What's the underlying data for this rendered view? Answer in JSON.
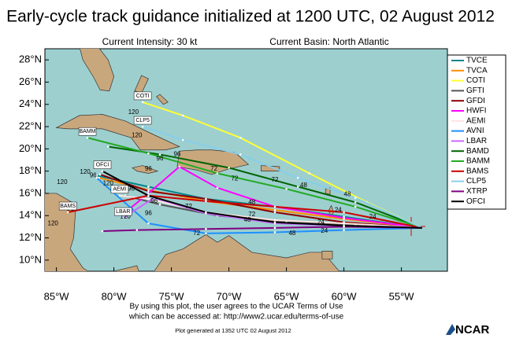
{
  "chart_data": {
    "type": "track",
    "title": "Early-cycle track guidance initialized at 1200 UTC, 02 August 2012",
    "subtitle_left": "Current Intensity: 30 kt",
    "subtitle_right": "Current Basin: North Atlantic",
    "xlim": [
      -86,
      -51
    ],
    "ylim": [
      9,
      29
    ],
    "xticks": [
      {
        "value": -85,
        "label": "85°W"
      },
      {
        "value": -80,
        "label": "80°W"
      },
      {
        "value": -75,
        "label": "75°W"
      },
      {
        "value": -70,
        "label": "70°W"
      },
      {
        "value": -65,
        "label": "65°W"
      },
      {
        "value": -60,
        "label": "60°W"
      },
      {
        "value": -55,
        "label": "55°W"
      }
    ],
    "yticks": [
      {
        "value": 10,
        "label": "10°N"
      },
      {
        "value": 12,
        "label": "12°N"
      },
      {
        "value": 14,
        "label": "14°N"
      },
      {
        "value": 16,
        "label": "16°N"
      },
      {
        "value": 18,
        "label": "18°N"
      },
      {
        "value": 20,
        "label": "20°N"
      },
      {
        "value": 22,
        "label": "22°N"
      },
      {
        "value": 24,
        "label": "24°N"
      },
      {
        "value": 26,
        "label": "26°N"
      },
      {
        "value": 28,
        "label": "28°N"
      }
    ],
    "series": [
      {
        "name": "TVCE",
        "color": "#00868b",
        "lon": [
          -53.2,
          -60,
          -66,
          -72,
          -77,
          -81.5
        ],
        "lat": [
          12.9,
          13.9,
          14.8,
          15.5,
          16.6,
          17.6
        ]
      },
      {
        "name": "TVCA",
        "color": "#ff8c00",
        "lon": [
          -53.2,
          -60,
          -66,
          -72,
          -77,
          -81.3
        ],
        "lat": [
          12.9,
          13.7,
          14.5,
          15.3,
          16.3,
          17.4
        ]
      },
      {
        "name": "COTI",
        "color": "#ffff33",
        "lon": [
          -53.2,
          -58,
          -63,
          -69,
          -74,
          -77.5
        ],
        "lat": [
          12.9,
          15.2,
          17.8,
          21,
          23,
          24.2
        ],
        "end_label": true
      },
      {
        "name": "GFTI",
        "color": "#555555",
        "lon": [
          -53.2,
          -59,
          -65,
          -71,
          -76,
          -79
        ],
        "lat": [
          12.9,
          13.2,
          13.4,
          14,
          15,
          15.8
        ]
      },
      {
        "name": "GFDI",
        "color": "#8b0000",
        "lon": [
          -53.2,
          -60,
          -66,
          -72,
          -77,
          -81.2
        ],
        "lat": [
          12.9,
          13.4,
          14.3,
          15.5,
          16.2,
          17.7
        ]
      },
      {
        "name": "HWFI",
        "color": "#ff00ff",
        "lon": [
          -53.2,
          -60,
          -66,
          -71,
          -74.3,
          -77,
          -79
        ],
        "lat": [
          12.9,
          13.8,
          14.8,
          16.5,
          18.4,
          16,
          14.3
        ]
      },
      {
        "name": "AEMI",
        "color": "#ffe4e1",
        "lon": [
          -53.2,
          -60,
          -66,
          -72,
          -77,
          -79.5
        ],
        "lat": [
          12.9,
          13.3,
          13.6,
          14.3,
          15.5,
          15.8
        ],
        "end_label": true
      },
      {
        "name": "AVNI",
        "color": "#1e90ff",
        "lon": [
          -53.2,
          -60,
          -66,
          -72,
          -77,
          -81.5
        ],
        "lat": [
          12.9,
          12.7,
          12.5,
          12.4,
          13.3,
          17.4
        ]
      },
      {
        "name": "LBAR",
        "color": "#cc66ff",
        "lon": [
          -53.2,
          -60,
          -66,
          -72,
          -76.5,
          -79.2
        ],
        "lat": [
          12.9,
          13.1,
          13.3,
          14.2,
          15.6,
          13.8
        ],
        "end_label": true
      },
      {
        "name": "BAMD",
        "color": "#006400",
        "lon": [
          -53.2,
          -59,
          -64,
          -70,
          -76,
          -80.5
        ],
        "lat": [
          12.9,
          15.2,
          16.6,
          18.3,
          19.5,
          20.2
        ]
      },
      {
        "name": "BAMM",
        "color": "#22aa22",
        "lon": [
          -53.2,
          -59,
          -65,
          -71,
          -77,
          -82.3
        ],
        "lat": [
          12.9,
          14.8,
          16.4,
          17.8,
          19.6,
          21
        ],
        "end_label": true
      },
      {
        "name": "BAMS",
        "color": "#cc0000",
        "lon": [
          -53.2,
          -60,
          -66,
          -72,
          -77,
          -84
        ],
        "lat": [
          12.9,
          14.3,
          14.8,
          15.3,
          15.8,
          14.3
        ],
        "end_label": true
      },
      {
        "name": "CLP5",
        "color": "#87ceeb",
        "lon": [
          -53.2,
          -59,
          -64,
          -69,
          -74,
          -77.5
        ],
        "lat": [
          12.9,
          15.6,
          17.4,
          19.5,
          20.8,
          22
        ],
        "end_label": true
      },
      {
        "name": "XTRP",
        "color": "#800080",
        "lon": [
          -53.2,
          -60,
          -66,
          -72,
          -78,
          -81
        ],
        "lat": [
          12.9,
          13,
          12.9,
          12.8,
          12.7,
          12.6
        ]
      },
      {
        "name": "OFCI",
        "color": "#000000",
        "lon": [
          -53.2,
          -60,
          -66,
          -72,
          -77,
          -81
        ],
        "lat": [
          12.9,
          13.1,
          13.4,
          14.3,
          15.8,
          18
        ],
        "end_label": true
      }
    ],
    "hour_labels": [
      {
        "hour": 120,
        "lon": -78.3,
        "lat": 23.3
      },
      {
        "hour": 120,
        "lon": -78,
        "lat": 21.2
      },
      {
        "hour": 96,
        "lon": -74.5,
        "lat": 19.5
      },
      {
        "hour": 96,
        "lon": -76,
        "lat": 19.1
      },
      {
        "hour": 72,
        "lon": -71.3,
        "lat": 18.2
      },
      {
        "hour": 96,
        "lon": -77,
        "lat": 18.2
      },
      {
        "hour": 72,
        "lon": -69.5,
        "lat": 17.3
      },
      {
        "hour": 120,
        "lon": -82.5,
        "lat": 17.9
      },
      {
        "hour": 120,
        "lon": -84.5,
        "lat": 17
      },
      {
        "hour": 96,
        "lon": -81.8,
        "lat": 17.6
      },
      {
        "hour": 120,
        "lon": -80.5,
        "lat": 16.9
      },
      {
        "hour": 96,
        "lon": -78.5,
        "lat": 16.4
      },
      {
        "hour": 96,
        "lon": -76.5,
        "lat": 15.3
      },
      {
        "hour": 120,
        "lon": -79,
        "lat": 13.9
      },
      {
        "hour": 96,
        "lon": -77,
        "lat": 14.2
      },
      {
        "hour": 120,
        "lon": -85.3,
        "lat": 13.3
      },
      {
        "hour": 96,
        "lon": -83.8,
        "lat": 14.6
      },
      {
        "hour": 72,
        "lon": -73.5,
        "lat": 14.8
      },
      {
        "hour": 72,
        "lon": -72.8,
        "lat": 12.4
      },
      {
        "hour": 48,
        "lon": -68,
        "lat": 15.2
      },
      {
        "hour": 48,
        "lon": -68.4,
        "lat": 13.6
      },
      {
        "hour": 48,
        "lon": -63.5,
        "lat": 16.7
      },
      {
        "hour": 48,
        "lon": -64.5,
        "lat": 12.4
      },
      {
        "hour": 24,
        "lon": -60.5,
        "lat": 14.5
      },
      {
        "hour": 24,
        "lon": -61.7,
        "lat": 12.6
      },
      {
        "hour": 72,
        "lon": -66,
        "lat": 17.2
      },
      {
        "hour": 72,
        "lon": -68,
        "lat": 14.1
      },
      {
        "hour": 48,
        "lon": -59.7,
        "lat": 15.9
      },
      {
        "hour": 24,
        "lon": -57.5,
        "lat": 13.9
      },
      {
        "hour": 24,
        "lon": -62,
        "lat": 13.4
      }
    ],
    "disclaimer": [
      "By using this plot, the user agrees to the UCAR Terms of Use",
      "which can be accessed at: http://www2.ucar.edu/terms-of-use"
    ],
    "footer": "Plot generated at 1352 UTC   02 August 2012",
    "logo": "NCAR"
  }
}
